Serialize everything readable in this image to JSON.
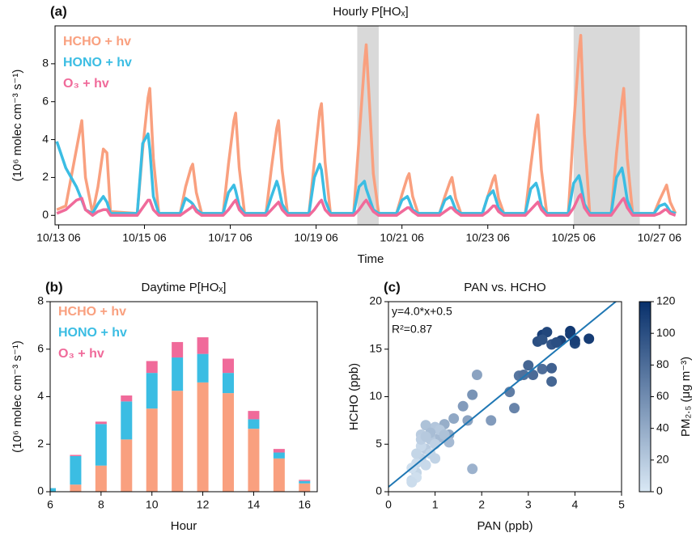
{
  "chart_data": [
    {
      "type": "line",
      "panel_label": "(a)",
      "title": "Hourly P[HOₓ]",
      "x_label": "Time",
      "y_label": "(10⁶ molec cm⁻³ s⁻¹)",
      "xlim": [
        "10/13 04",
        "10/27 21"
      ],
      "xticks": [
        "10/13 06",
        "10/15 06",
        "10/17 06",
        "10/19 06",
        "10/21 06",
        "10/23 06",
        "10/25 06",
        "10/27 06"
      ],
      "ylim": [
        -0.5,
        10
      ],
      "yticks": [
        0,
        2,
        4,
        6,
        8
      ],
      "shaded_spans": [
        [
          "10/20 05",
          "10/20 17"
        ],
        [
          "10/25 06",
          "10/26 19"
        ]
      ],
      "shade_color": "#d9d9d9",
      "x": [
        "10/13 05",
        "10/13 10",
        "10/13 16",
        "10/13 19",
        "10/13 21",
        "10/14 01",
        "10/14 04",
        "10/14 07",
        "10/14 09",
        "10/14 11",
        "10/15 02",
        "10/15 05",
        "10/15 08",
        "10/15 09",
        "10/15 11",
        "10/15 14",
        "10/16 02",
        "10/16 05",
        "10/16 08",
        "10/16 09",
        "10/16 11",
        "10/16 14",
        "10/17 02",
        "10/17 05",
        "10/17 08",
        "10/17 09",
        "10/17 11",
        "10/17 14",
        "10/18 02",
        "10/18 05",
        "10/18 08",
        "10/18 09",
        "10/18 11",
        "10/18 14",
        "10/19 02",
        "10/19 05",
        "10/19 08",
        "10/19 09",
        "10/19 11",
        "10/19 14",
        "10/20 03",
        "10/20 06",
        "10/20 09",
        "10/20 10",
        "10/20 14",
        "10/20 17",
        "10/21 03",
        "10/21 06",
        "10/21 09",
        "10/21 10",
        "10/21 12",
        "10/21 15",
        "10/22 03",
        "10/22 06",
        "10/22 09",
        "10/22 10",
        "10/22 12",
        "10/22 15",
        "10/23 03",
        "10/23 06",
        "10/23 09",
        "10/23 10",
        "10/23 12",
        "10/23 15",
        "10/24 03",
        "10/24 06",
        "10/24 09",
        "10/24 10",
        "10/24 12",
        "10/24 15",
        "10/25 03",
        "10/25 06",
        "10/25 09",
        "10/25 10",
        "10/25 12",
        "10/25 15",
        "10/26 03",
        "10/26 06",
        "10/26 09",
        "10/26 10",
        "10/26 12",
        "10/26 15",
        "10/27 03",
        "10/27 06",
        "10/27 09",
        "10/27 10",
        "10/27 12",
        "10/27 15"
      ],
      "series": [
        {
          "name": "HCHO + hv",
          "color": "#f9a07f",
          "values": [
            0.3,
            0.5,
            3.5,
            5.0,
            2.0,
            0.1,
            1.5,
            3.5,
            3.3,
            0.2,
            0.1,
            3.5,
            6.2,
            6.7,
            3.0,
            0.1,
            0.1,
            1.5,
            2.5,
            2.7,
            1.2,
            0.1,
            0.1,
            2.7,
            5.0,
            5.4,
            2.5,
            0.1,
            0.1,
            2.5,
            4.6,
            5.0,
            2.4,
            0.1,
            0.1,
            2.8,
            5.5,
            5.9,
            2.8,
            0.1,
            0.1,
            4.0,
            8.0,
            9.0,
            2.2,
            0.1,
            0.1,
            1.1,
            2.0,
            2.2,
            1.0,
            0.1,
            0.1,
            1.0,
            1.8,
            2.0,
            0.9,
            0.1,
            0.1,
            1.0,
            1.9,
            2.1,
            0.9,
            0.1,
            0.1,
            2.6,
            4.8,
            5.3,
            2.4,
            0.1,
            0.1,
            4.7,
            8.6,
            9.5,
            4.3,
            0.1,
            0.1,
            3.3,
            6.0,
            6.7,
            3.0,
            0.1,
            0.1,
            0.8,
            1.4,
            1.6,
            0.7,
            0.1
          ]
        },
        {
          "name": "HONO + hv",
          "color": "#3bbde3",
          "values": [
            3.9,
            2.5,
            1.5,
            0.8,
            0.3,
            0.1,
            0.6,
            1.0,
            0.7,
            0.1,
            0.1,
            3.8,
            4.3,
            3.5,
            1.0,
            0.1,
            0.1,
            0.9,
            0.7,
            0.6,
            0.3,
            0.1,
            0.1,
            1.2,
            1.6,
            1.3,
            0.5,
            0.1,
            0.1,
            1.0,
            1.8,
            1.5,
            0.6,
            0.1,
            0.1,
            2.0,
            2.7,
            2.4,
            0.8,
            0.1,
            0.1,
            1.5,
            1.8,
            1.4,
            0.3,
            0.1,
            0.1,
            0.8,
            1.0,
            0.8,
            0.3,
            0.1,
            0.1,
            0.8,
            1.0,
            0.8,
            0.3,
            0.1,
            0.1,
            1.0,
            1.3,
            1.0,
            0.4,
            0.1,
            0.1,
            1.4,
            1.7,
            1.4,
            0.5,
            0.1,
            0.1,
            1.7,
            2.1,
            1.7,
            0.6,
            0.1,
            0.1,
            2.0,
            2.5,
            2.0,
            0.8,
            0.1,
            0.1,
            0.5,
            0.6,
            0.5,
            0.2,
            0.1
          ]
        },
        {
          "name": "O₃ + hv",
          "color": "#f06a9a",
          "values": [
            0.1,
            0.3,
            0.8,
            0.9,
            0.3,
            0,
            0.2,
            0.3,
            0.3,
            0,
            0,
            0.4,
            0.8,
            0.8,
            0.3,
            0,
            0,
            0.2,
            0.4,
            0.5,
            0.2,
            0,
            0,
            0.3,
            0.7,
            0.8,
            0.3,
            0,
            0,
            0.3,
            0.6,
            0.7,
            0.3,
            0,
            0,
            0.3,
            0.7,
            0.8,
            0.3,
            0,
            0,
            0.3,
            0.7,
            0.8,
            0.2,
            0,
            0,
            0.2,
            0.4,
            0.4,
            0.2,
            0,
            0,
            0.2,
            0.4,
            0.4,
            0.2,
            0,
            0,
            0.2,
            0.5,
            0.5,
            0.2,
            0,
            0,
            0.3,
            0.6,
            0.7,
            0.3,
            0,
            0,
            0.4,
            1.0,
            1.1,
            0.4,
            0,
            0,
            0.4,
            0.8,
            0.9,
            0.4,
            0,
            0,
            0.1,
            0.3,
            0.3,
            0.1,
            0
          ]
        }
      ]
    },
    {
      "type": "stacked_bar",
      "panel_label": "(b)",
      "title": "Daytime P[HOₓ]",
      "x_label": "Hour",
      "y_label": "(10⁶ molec cm⁻³ s⁻¹)",
      "xlim": [
        6,
        16.5
      ],
      "xticks": [
        6,
        8,
        10,
        12,
        14,
        16
      ],
      "ylim": [
        0,
        8
      ],
      "yticks": [
        0,
        2,
        4,
        6,
        8
      ],
      "x": [
        6,
        7,
        8,
        9,
        10,
        11,
        12,
        13,
        14,
        15,
        16
      ],
      "series": [
        {
          "name": "HCHO + hv",
          "color": "#f9a07f",
          "values": [
            0,
            0.3,
            1.1,
            2.2,
            3.5,
            4.25,
            4.6,
            4.15,
            2.65,
            1.4,
            0.35
          ]
        },
        {
          "name": "HONO + hv",
          "color": "#3bbde3",
          "values": [
            0.15,
            1.2,
            1.75,
            1.6,
            1.5,
            1.4,
            1.2,
            0.85,
            0.4,
            0.25,
            0.1
          ]
        },
        {
          "name": "O₃ + hv",
          "color": "#f06a9a",
          "values": [
            0,
            0.05,
            0.1,
            0.25,
            0.5,
            0.65,
            0.7,
            0.6,
            0.35,
            0.15,
            0.05
          ]
        }
      ]
    },
    {
      "type": "scatter",
      "panel_label": "(c)",
      "title": "PAN vs. HCHO",
      "x_label": "PAN (ppb)",
      "y_label": "HCHO (ppb)",
      "xlim": [
        0,
        5
      ],
      "xticks": [
        0,
        1,
        2,
        3,
        4,
        5
      ],
      "ylim": [
        0,
        20
      ],
      "yticks": [
        0,
        5,
        10,
        15,
        20
      ],
      "fit": {
        "slope": 4.0,
        "intercept": 0.5,
        "label": "y=4.0*x+0.5",
        "color": "#1f77b4"
      },
      "r2_label": "R²=0.87",
      "colorbar_label": "PM₂.₅ (μg m⁻³)",
      "clim": [
        0,
        120
      ],
      "cticks": [
        0,
        20,
        40,
        60,
        80,
        100,
        120
      ],
      "colormap": [
        "#d9e8f5",
        "#08306b"
      ],
      "x": [
        3.3,
        3.4,
        3.9,
        4.3,
        3.7,
        3.2,
        4.0,
        4.0,
        3.5,
        3.6,
        3.3,
        3.9,
        3.0,
        3.3,
        3.5,
        3.5,
        2.8,
        2.6,
        2.7,
        3.1,
        2.9,
        1.8,
        1.9,
        2.2,
        1.7,
        1.6,
        1.4,
        1.3,
        1.8,
        1.2,
        1.1,
        0.5,
        0.6,
        0.7,
        0.8,
        0.9,
        1.0,
        0.8,
        0.6,
        0.7,
        0.5,
        0.9,
        1.0,
        1.1,
        0.6,
        0.7,
        0.8,
        0.5,
        1.2,
        1.0,
        0.9,
        0.7,
        0.6,
        1.3,
        0.8
      ],
      "values": [
        16.5,
        16.8,
        16.9,
        16.1,
        15.9,
        15.8,
        15.6,
        15.9,
        15.5,
        15.7,
        16.0,
        16.6,
        13.3,
        12.9,
        13.0,
        11.6,
        12.2,
        10.5,
        8.8,
        12.3,
        12.3,
        10.2,
        12.3,
        7.5,
        7.5,
        9.0,
        7.7,
        6.0,
        2.4,
        7.1,
        5.7,
        1.2,
        2.0,
        3.5,
        4.5,
        5.5,
        6.8,
        7.0,
        3.0,
        4.8,
        2.5,
        4.0,
        5.0,
        6.5,
        1.5,
        6.0,
        2.8,
        1.0,
        6.0,
        3.5,
        6.2,
        5.5,
        4.0,
        5.2,
        5.8
      ],
      "color_values": [
        110,
        105,
        115,
        112,
        108,
        100,
        105,
        110,
        95,
        100,
        98,
        112,
        85,
        80,
        88,
        85,
        75,
        70,
        65,
        82,
        78,
        55,
        45,
        50,
        45,
        50,
        42,
        40,
        35,
        38,
        30,
        10,
        12,
        15,
        18,
        20,
        22,
        25,
        8,
        10,
        5,
        12,
        15,
        20,
        6,
        18,
        10,
        8,
        25,
        14,
        28,
        16,
        12,
        30,
        20
      ]
    }
  ]
}
